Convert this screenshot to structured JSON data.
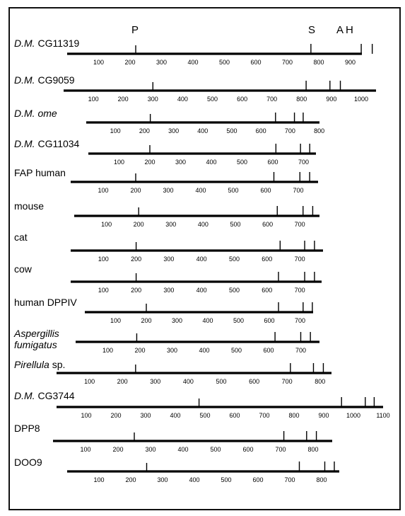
{
  "header_markers": [
    {
      "text": "P",
      "cls": "hdr-p"
    },
    {
      "text": "S",
      "cls": "hdr-s"
    },
    {
      "text": "A",
      "cls": "hdr-a"
    },
    {
      "text": "H",
      "cls": "hdr-h"
    }
  ],
  "rows": [
    {
      "prefix": "D.M.",
      "name": " CG11319",
      "ticks": [
        100,
        200,
        300,
        400,
        500,
        600,
        700,
        800,
        900
      ],
      "end": 935,
      "motifs": [
        218,
        775,
        935,
        970
      ]
    },
    {
      "prefix": "D.M.",
      "name": " CG9059",
      "ticks": [
        100,
        200,
        300,
        400,
        500,
        600,
        700,
        800,
        900,
        1000
      ],
      "end": 1040,
      "motifs": [
        300,
        815,
        895,
        930
      ]
    },
    {
      "prefix": "D.M. ome",
      "name": "",
      "ticks": [
        100,
        200,
        300,
        400,
        500,
        600,
        700,
        800
      ],
      "end": 800,
      "motifs": [
        220,
        650,
        715,
        745
      ]
    },
    {
      "prefix": "D.M.",
      "name": " CG11034",
      "ticks": [
        100,
        200,
        300,
        400,
        500,
        600,
        700
      ],
      "end": 740,
      "motifs": [
        200,
        610,
        690,
        720
      ]
    },
    {
      "prefix": "",
      "name": "FAP human",
      "ticks": [
        100,
        200,
        300,
        400,
        500,
        600,
        700
      ],
      "end": 760,
      "motifs": [
        200,
        625,
        705,
        735
      ]
    },
    {
      "prefix": "",
      "name": "mouse",
      "ticks": [
        100,
        200,
        300,
        400,
        500,
        600,
        700
      ],
      "end": 760,
      "motifs": [
        200,
        630,
        710,
        740
      ]
    },
    {
      "prefix": "",
      "name": "cat",
      "ticks": [
        100,
        200,
        300,
        400,
        500,
        600,
        700
      ],
      "end": 770,
      "motifs": [
        200,
        640,
        715,
        745
      ]
    },
    {
      "prefix": "",
      "name": "cow",
      "ticks": [
        100,
        200,
        300,
        400,
        500,
        600,
        700
      ],
      "end": 765,
      "motifs": [
        200,
        635,
        715,
        745
      ]
    },
    {
      "prefix": "",
      "name": "human DPPIV",
      "ticks": [
        100,
        200,
        300,
        400,
        500,
        600,
        700
      ],
      "end": 760,
      "motifs": [
        200,
        630,
        710,
        740
      ]
    },
    {
      "prefix": "Aspergillis",
      "name": "",
      "line2": "fumigatus",
      "ticks": [
        100,
        200,
        300,
        400,
        500,
        600,
        700
      ],
      "end": 750,
      "motifs": [
        190,
        620,
        700,
        730
      ]
    },
    {
      "prefix": "Pirellula",
      "name": " sp.",
      "ticks": [
        100,
        200,
        300,
        400,
        500,
        600,
        700,
        800
      ],
      "end": 830,
      "motifs": [
        240,
        710,
        780,
        810
      ]
    },
    {
      "prefix": "D.M.",
      "name": " CG3744",
      "ticks": [
        100,
        200,
        300,
        400,
        500,
        600,
        700,
        800,
        900,
        1000,
        1100
      ],
      "tick_labels": [
        "100",
        "200",
        "300",
        "400",
        "500",
        "600",
        "700",
        "800",
        "900",
        "1000",
        "1100"
      ],
      "end": 1100,
      "motifs": [
        480,
        960,
        1040,
        1070
      ]
    },
    {
      "prefix": "",
      "name": "DPP8",
      "ticks": [
        100,
        200,
        300,
        400,
        500,
        600,
        700,
        800
      ],
      "end": 860,
      "motifs": [
        250,
        710,
        780,
        810
      ]
    },
    {
      "prefix": "",
      "name": "DOO9",
      "ticks": [
        100,
        200,
        300,
        400,
        500,
        600,
        700,
        800
      ],
      "end": 860,
      "motifs": [
        250,
        730,
        810,
        840
      ]
    }
  ]
}
